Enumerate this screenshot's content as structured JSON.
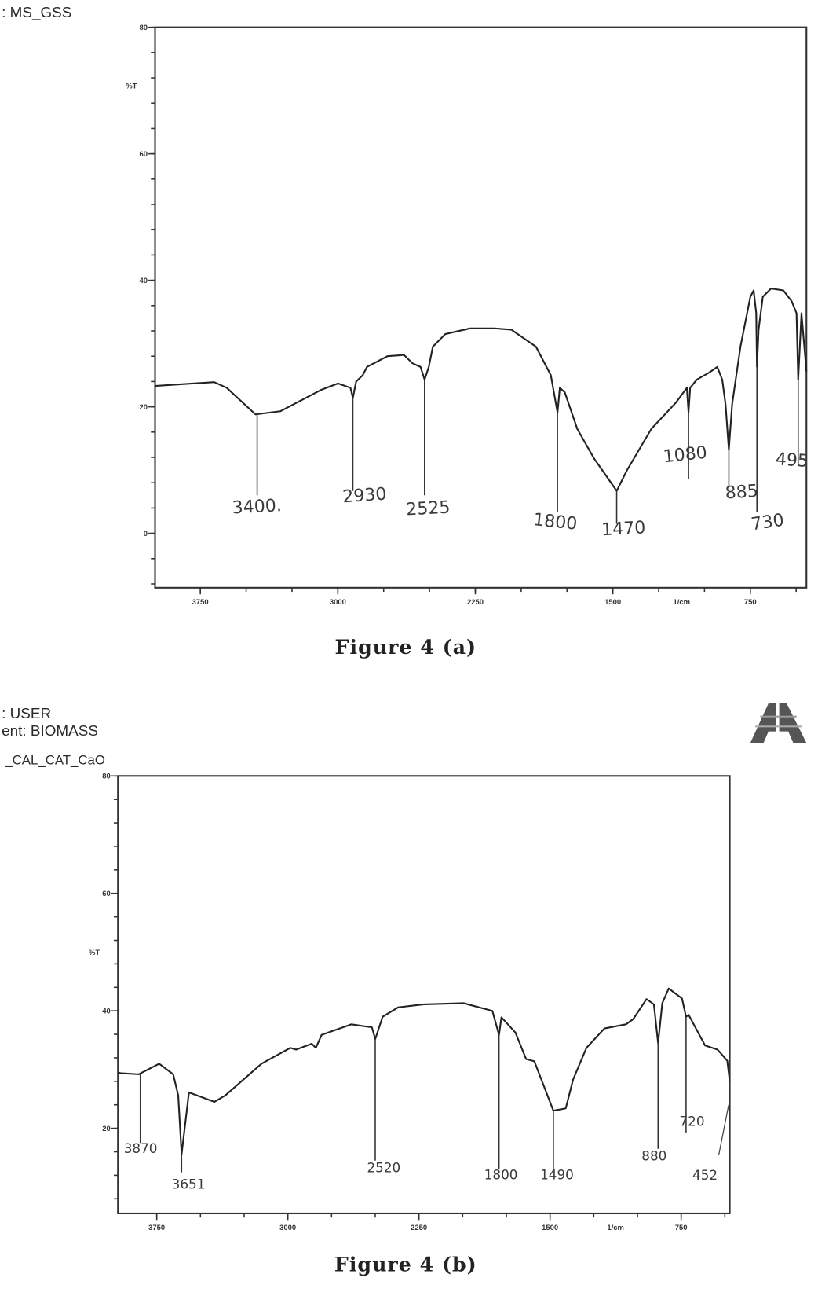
{
  "figures": [
    {
      "header_lines": [
        ": MS_GSS"
      ],
      "caption": "Figure 4 (a)"
    },
    {
      "header_lines": [
        ": USER",
        "ent: BIOMASS",
        "_CAL_CAT_CaO"
      ],
      "caption": "Figure 4 (b)",
      "logo_text": "AA"
    }
  ],
  "chart_data": [
    {
      "type": "line",
      "title": "MS_GSS",
      "xlabel": "1/cm",
      "ylabel": "%T",
      "xlim": [
        3997,
        444
      ],
      "ylim": [
        -8.6,
        80
      ],
      "x_ticks": [
        3750,
        3000,
        2250,
        1500,
        750
      ],
      "x_tick_labels": [
        "3750",
        "3000",
        "2250",
        "1500",
        "750"
      ],
      "y_ticks": [
        80,
        60,
        40,
        20,
        0
      ],
      "y_tick_labels": [
        "80",
        "60",
        "40",
        "20",
        "0"
      ],
      "grid": false,
      "series": [
        {
          "name": "MS_GSS",
          "x": [
            3997,
            3674,
            3606,
            3449,
            3314,
            3089,
            2999,
            2931,
            2918,
            2900,
            2864,
            2841,
            2729,
            2639,
            2594,
            2549,
            2527,
            2504,
            2482,
            2414,
            2279,
            2144,
            2054,
            1919,
            1838,
            1802,
            1789,
            1762,
            1694,
            1604,
            1479,
            1424,
            1290,
            1155,
            1096,
            1087,
            1078,
            1042,
            975,
            930,
            903,
            885,
            867,
            849,
            804,
            750,
            732,
            718,
            714,
            705,
            682,
            637,
            570,
            525,
            498,
            489,
            471,
            444
          ],
          "y": [
            23.3,
            23.9,
            23.0,
            18.8,
            19.3,
            22.7,
            23.7,
            23.0,
            21.4,
            24.0,
            25.0,
            26.3,
            28.0,
            28.2,
            26.9,
            26.3,
            24.3,
            26.3,
            29.5,
            31.5,
            32.4,
            32.4,
            32.2,
            29.5,
            25.0,
            19.1,
            23.0,
            22.3,
            16.5,
            11.9,
            6.7,
            9.9,
            16.5,
            20.7,
            23.0,
            19.1,
            23.0,
            24.3,
            25.4,
            26.3,
            24.3,
            20.4,
            13.2,
            20.4,
            29.5,
            37.4,
            38.4,
            34.8,
            26.3,
            32.2,
            37.4,
            38.7,
            38.4,
            36.7,
            34.8,
            24.3,
            34.8,
            25.6
          ]
        }
      ],
      "annotations": [
        {
          "label": "3400.",
          "x": 3440,
          "y_from": 18.8,
          "y_to": 6.0
        },
        {
          "label": "2930",
          "x": 2918,
          "y_from": 21.4,
          "y_to": 6.7
        },
        {
          "label": "2525",
          "x": 2527,
          "y_from": 24.3,
          "y_to": 6.0
        },
        {
          "label": "1800",
          "x": 1802,
          "y_from": 19.1,
          "y_to": 3.4
        },
        {
          "label": "1470",
          "x": 1479,
          "y_from": 6.7,
          "y_to": 1.5
        },
        {
          "label": "1080",
          "x": 1087,
          "y_from": 19.1,
          "y_to": 8.6
        },
        {
          "label": "885",
          "x": 867,
          "y_from": 13.2,
          "y_to": 7.3
        },
        {
          "label": "730",
          "x": 714,
          "y_from": 26.3,
          "y_to": 3.4
        },
        {
          "label": "495",
          "x": 489,
          "y_from": 24.3,
          "y_to": 10.6
        }
      ]
    },
    {
      "type": "line",
      "title": "CAL_CAT_CaO",
      "xlabel": "1/cm",
      "ylabel": "%T",
      "xlim": [
        3972,
        472
      ],
      "ylim": [
        5.5,
        80
      ],
      "x_ticks": [
        3750,
        3000,
        2250,
        1500,
        750
      ],
      "x_tick_labels": [
        "3750",
        "3000",
        "2250",
        "1500",
        "750"
      ],
      "y_ticks": [
        80,
        60,
        40,
        20
      ],
      "y_tick_labels": [
        "80",
        "60",
        "40",
        "20"
      ],
      "grid": false,
      "series": [
        {
          "name": "CAL_CAT_CaO",
          "x": [
            3972,
            3958,
            3854,
            3736,
            3656,
            3627,
            3608,
            3566,
            3420,
            3358,
            3151,
            2986,
            2953,
            2863,
            2840,
            2807,
            2637,
            2519,
            2500,
            2458,
            2368,
            2222,
            1995,
            1830,
            1792,
            1778,
            1698,
            1637,
            1590,
            1481,
            1410,
            1368,
            1292,
            1189,
            1066,
            1024,
            948,
            906,
            882,
            858,
            821,
            745,
            722,
            707,
            613,
            542,
            486,
            472
          ],
          "y": [
            29.5,
            29.4,
            29.2,
            31.0,
            29.2,
            25.6,
            15.6,
            26.1,
            24.5,
            25.6,
            31.0,
            33.7,
            33.4,
            34.4,
            33.7,
            35.9,
            37.7,
            37.2,
            35.2,
            39.0,
            40.6,
            41.1,
            41.3,
            40.0,
            35.9,
            38.9,
            36.3,
            31.8,
            31.4,
            23.0,
            23.4,
            28.3,
            33.7,
            37.0,
            37.7,
            38.6,
            42.0,
            41.1,
            34.5,
            41.3,
            43.8,
            42.1,
            39.0,
            39.3,
            34.1,
            33.4,
            31.5,
            28.0
          ]
        }
      ],
      "annotations": [
        {
          "label": "3870",
          "x": 3844,
          "y_from": 29.2,
          "y_to": 17.5
        },
        {
          "label": "3651",
          "x": 3608,
          "y_from": 15.6,
          "y_to": 12.5
        },
        {
          "label": "2520",
          "x": 2500,
          "y_from": 35.2,
          "y_to": 14.5
        },
        {
          "label": "1800",
          "x": 1792,
          "y_from": 35.9,
          "y_to": 13.0
        },
        {
          "label": "1490",
          "x": 1481,
          "y_from": 23.0,
          "y_to": 13.0
        },
        {
          "label": "880",
          "x": 882,
          "y_from": 34.5,
          "y_to": 16.5
        },
        {
          "label": "720",
          "x": 722,
          "y_from": 39.0,
          "y_to": 19.3
        },
        {
          "label": "452",
          "x": 478,
          "y_from": 24.0,
          "y_to": 15.5
        }
      ]
    }
  ]
}
